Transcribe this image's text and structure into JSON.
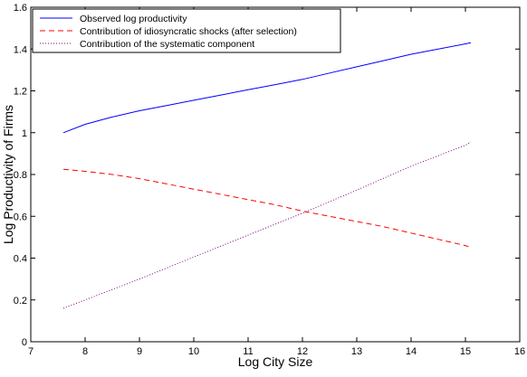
{
  "chart_data": {
    "type": "line",
    "xlabel": "Log City Size",
    "ylabel": "Log Productivity of Firms",
    "xlim": [
      7,
      16
    ],
    "ylim": [
      0,
      1.6
    ],
    "xticks": [
      "7",
      "8",
      "9",
      "10",
      "11",
      "12",
      "13",
      "14",
      "15",
      "16"
    ],
    "yticks": [
      "0",
      "0.2",
      "0.4",
      "0.6",
      "0.8",
      "1",
      "1.2",
      "1.4",
      "1.6"
    ],
    "legend_position": "top-left",
    "grid": false,
    "series": [
      {
        "name": "Observed log productivity",
        "color": "#0000ff",
        "style": "solid",
        "x": [
          7.6,
          8,
          8.5,
          9,
          9.5,
          10,
          10.5,
          11,
          11.5,
          12,
          12.5,
          13,
          13.5,
          14,
          14.5,
          15,
          15.1
        ],
        "y": [
          1.0,
          1.04,
          1.075,
          1.105,
          1.13,
          1.155,
          1.18,
          1.205,
          1.23,
          1.255,
          1.285,
          1.315,
          1.345,
          1.375,
          1.4,
          1.425,
          1.43
        ]
      },
      {
        "name": "Contribution of idiosyncratic shocks  (after selection)",
        "color": "#ff0000",
        "style": "dashed",
        "x": [
          7.6,
          8,
          8.5,
          9,
          9.5,
          10,
          10.5,
          11,
          11.5,
          12,
          12.5,
          13,
          13.5,
          14,
          14.5,
          15,
          15.1
        ],
        "y": [
          0.825,
          0.815,
          0.8,
          0.78,
          0.755,
          0.73,
          0.705,
          0.68,
          0.655,
          0.625,
          0.6,
          0.575,
          0.55,
          0.52,
          0.49,
          0.46,
          0.45
        ]
      },
      {
        "name": "Contribution of the systematic component",
        "color": "#800080",
        "style": "dotted",
        "x": [
          7.6,
          8,
          9,
          10,
          11,
          12,
          13,
          14,
          15,
          15.1
        ],
        "y": [
          0.16,
          0.2,
          0.3,
          0.405,
          0.51,
          0.615,
          0.725,
          0.84,
          0.94,
          0.955
        ]
      }
    ]
  }
}
